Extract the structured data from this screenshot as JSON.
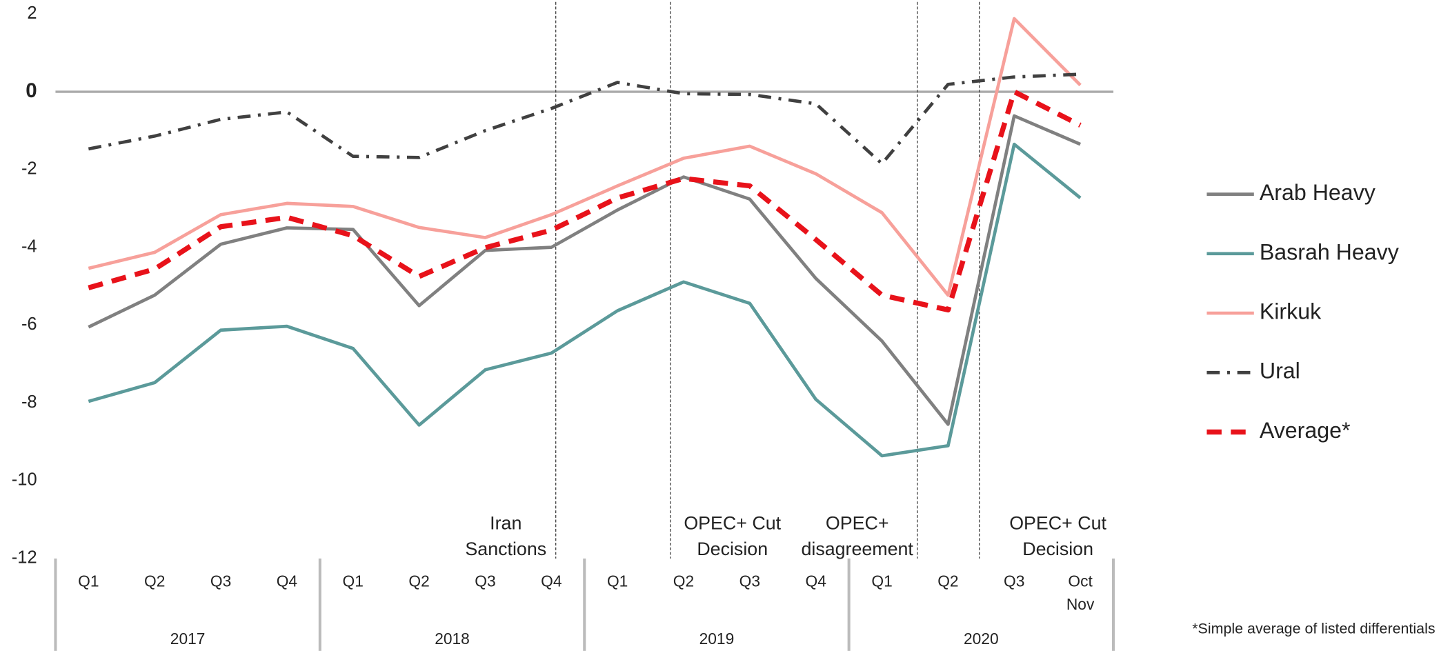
{
  "chart_data": {
    "type": "line",
    "categories": [
      "Q1",
      "Q2",
      "Q3",
      "Q4",
      "Q1",
      "Q2",
      "Q3",
      "Q4",
      "Q1",
      "Q2",
      "Q3",
      "Q4",
      "Q1",
      "Q2",
      "Q3",
      "Oct Nov"
    ],
    "x_groups": [
      "2017",
      "2018",
      "2019",
      "2020"
    ],
    "ylim": [
      -12,
      2
    ],
    "yticks": [
      2,
      0,
      -2,
      -4,
      -6,
      -8,
      -10,
      -12
    ],
    "series": [
      {
        "name": "Arab Heavy",
        "color": "#808080",
        "dash": "solid",
        "values": [
          -6.05,
          -5.23,
          -3.92,
          -3.5,
          -3.54,
          -5.5,
          -4.08,
          -4.0,
          -3.04,
          -2.19,
          -2.76,
          -4.8,
          -6.41,
          -8.55,
          -0.62,
          -1.35
        ]
      },
      {
        "name": "Basrah Heavy",
        "color": "#5b9a9a",
        "dash": "solid",
        "values": [
          -7.96,
          -7.48,
          -6.13,
          -6.03,
          -6.6,
          -8.57,
          -7.15,
          -6.72,
          -5.63,
          -4.89,
          -5.44,
          -7.91,
          -9.36,
          -9.1,
          -1.35,
          -2.73
        ]
      },
      {
        "name": "Kirkuk",
        "color": "#f7a09a",
        "dash": "solid",
        "values": [
          -4.54,
          -4.13,
          -3.16,
          -2.87,
          -2.95,
          -3.49,
          -3.75,
          -3.16,
          -2.42,
          -1.71,
          -1.4,
          -2.11,
          -3.11,
          -5.23,
          1.88,
          0.17
        ]
      },
      {
        "name": "Ural",
        "color": "#404040",
        "dash": "dashdot",
        "values": [
          -1.47,
          -1.14,
          -0.71,
          -0.52,
          -1.66,
          -1.69,
          -1.0,
          -0.43,
          0.24,
          -0.05,
          -0.07,
          -0.31,
          -1.85,
          0.19,
          0.38,
          0.45
        ]
      },
      {
        "name": "Average*",
        "color": "#e8121a",
        "dash": "dash",
        "values": [
          -5.04,
          -4.56,
          -3.47,
          -3.23,
          -3.7,
          -4.75,
          -4.01,
          -3.56,
          -2.73,
          -2.23,
          -2.42,
          -3.8,
          -5.23,
          -5.61,
          0,
          -0.86
        ]
      }
    ],
    "annotations": [
      {
        "lines": [
          "Iran",
          "Sanctions"
        ]
      },
      {
        "lines": [
          "OPEC+ Cut",
          "Decision"
        ]
      },
      {
        "lines": [
          "OPEC+",
          "disagreement"
        ]
      },
      {
        "lines": [
          "OPEC+ Cut",
          "Decision"
        ]
      }
    ],
    "footnote": "*Simple average of listed differentials"
  }
}
